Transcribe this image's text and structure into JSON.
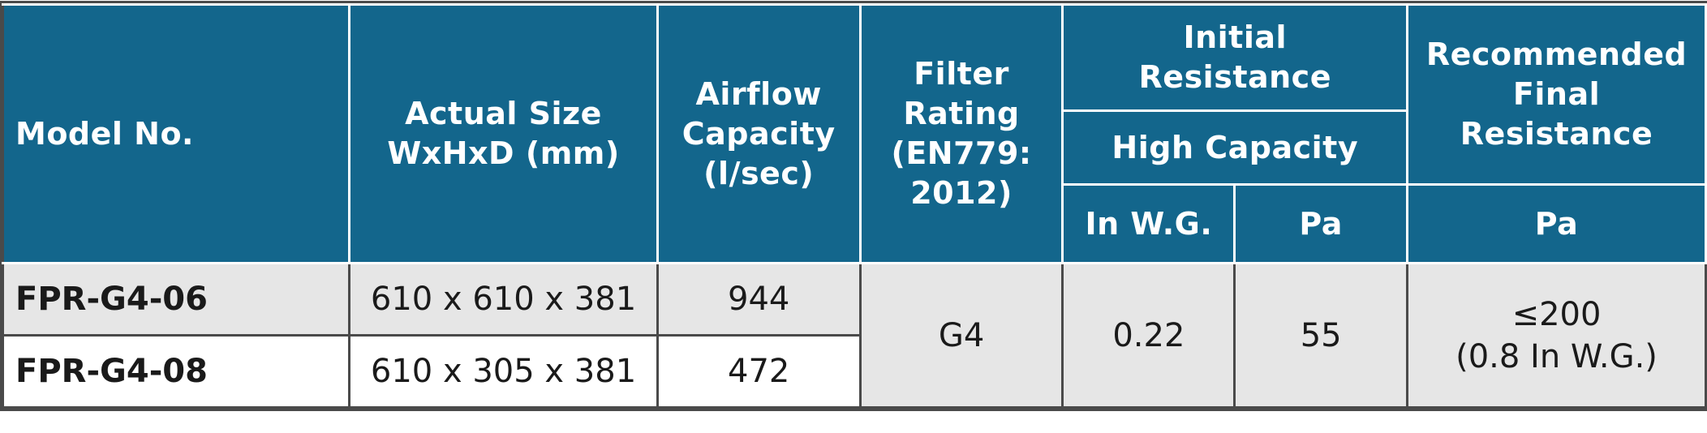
{
  "headers": {
    "model": "Model No.",
    "size": [
      "Actual Size",
      "WxHxD (mm)"
    ],
    "airflow": [
      "Airflow",
      "Capacity",
      "(l/sec)"
    ],
    "rating": [
      "Filter",
      "Rating",
      "(EN779:",
      "2012)"
    ],
    "initial": [
      "Initial",
      "Resistance"
    ],
    "high_capacity": "High Capacity",
    "in_wg": "In W.G.",
    "pa": "Pa",
    "final": [
      "Recommended",
      "Final Resistance"
    ],
    "final_pa": "Pa"
  },
  "rows": [
    {
      "model": "FPR-G4-06",
      "size": "610 x 610 x 381",
      "airflow": "944"
    },
    {
      "model": "FPR-G4-08",
      "size": "610 x 305 x 381",
      "airflow": "472"
    }
  ],
  "shared": {
    "rating": "G4",
    "in_wg": "0.22",
    "pa": "55",
    "final": [
      "≤200",
      "(0.8 In W.G.)"
    ]
  }
}
